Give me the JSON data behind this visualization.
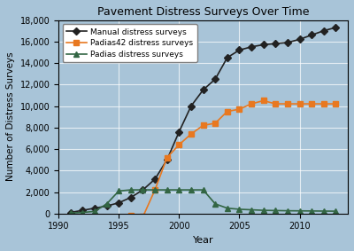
{
  "title": "Pavement Distress Surveys Over Time",
  "xlabel": "Year",
  "ylabel": "Number of Distress Surveys",
  "bg_color": "#a8c4d8",
  "xlim": [
    1990,
    2014
  ],
  "ylim": [
    0,
    18000
  ],
  "yticks": [
    0,
    2000,
    4000,
    6000,
    8000,
    10000,
    12000,
    14000,
    16000,
    18000
  ],
  "xticks": [
    1990,
    1995,
    2000,
    2005,
    2010
  ],
  "manual": {
    "x": [
      1991,
      1992,
      1993,
      1994,
      1995,
      1996,
      1997,
      1998,
      1999,
      2000,
      2001,
      2002,
      2003,
      2004,
      2005,
      2006,
      2007,
      2008,
      2009,
      2010,
      2011,
      2012,
      2013
    ],
    "y": [
      100,
      300,
      500,
      700,
      1000,
      1500,
      2200,
      3200,
      5000,
      7600,
      10000,
      11500,
      12500,
      14500,
      15200,
      15500,
      15700,
      15800,
      15900,
      16200,
      16600,
      17000,
      17300
    ],
    "color": "#222222",
    "label": "Manual distress surveys",
    "marker": "D",
    "linestyle": "-"
  },
  "padias42": {
    "x": [
      1996,
      1997,
      1998,
      1999,
      2000,
      2001,
      2002,
      2003,
      2004,
      2005,
      2006,
      2007,
      2008,
      2009,
      2010,
      2011,
      2012,
      2013
    ],
    "y": [
      -200,
      -300,
      2200,
      5200,
      6400,
      7400,
      8200,
      8400,
      9500,
      9700,
      10200,
      10500,
      10200,
      10200,
      10200,
      10200,
      10200,
      10200
    ],
    "color": "#e87820",
    "label": "Padias42 distress surveys",
    "marker": "s",
    "linestyle": "-"
  },
  "padias": {
    "x": [
      1991,
      1992,
      1993,
      1994,
      1995,
      1996,
      1997,
      1998,
      1999,
      2000,
      2001,
      2002,
      2003,
      2004,
      2005,
      2006,
      2007,
      2008,
      2009,
      2010,
      2011,
      2012,
      2013
    ],
    "y": [
      50,
      100,
      200,
      900,
      2100,
      2200,
      2200,
      2200,
      2200,
      2200,
      2200,
      2200,
      900,
      500,
      400,
      350,
      300,
      280,
      260,
      250,
      240,
      230,
      220
    ],
    "color": "#336644",
    "label": "Padias distress surveys",
    "marker": "^",
    "linestyle": "-"
  }
}
